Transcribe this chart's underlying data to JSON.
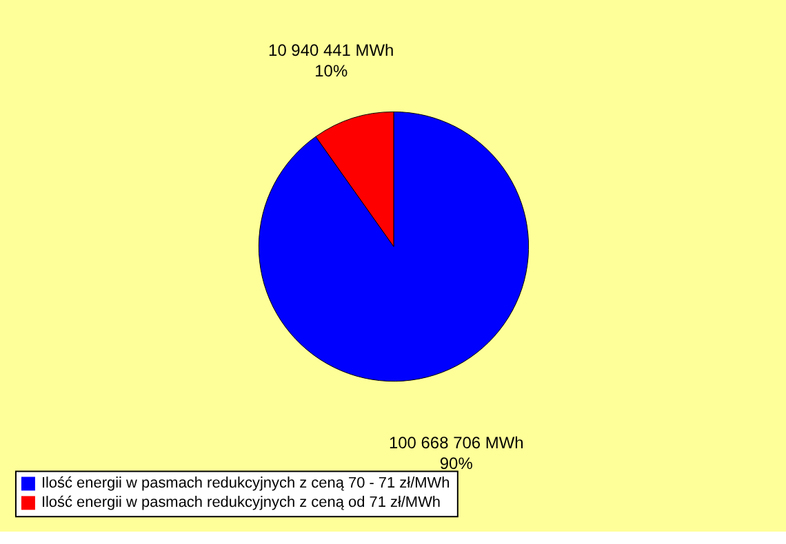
{
  "chart_data": {
    "type": "pie",
    "categories": [
      "Ilość energii w pasmach redukcyjnych z ceną 70 - 71 zł/MWh",
      "Ilość energii w pasmach redukcyjnych z ceną od 71 zł/MWh"
    ],
    "values": [
      100668706,
      10940441
    ],
    "colors": [
      "#0000ff",
      "#ff0000"
    ],
    "value_labels": [
      "100 668 706 MWh\n90%",
      "10 940 441 MWh\n10%"
    ],
    "legend": "bottom"
  }
}
